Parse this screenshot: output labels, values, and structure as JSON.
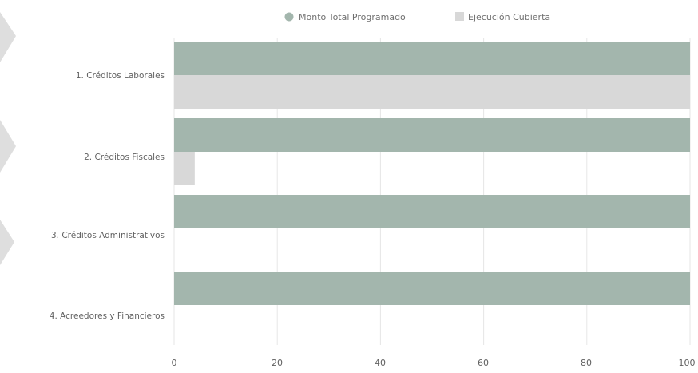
{
  "colors": {
    "series_1": "#a3b6ad",
    "series_2": "#d8d8d8",
    "gridline": "#e6e6e6",
    "chevron": "#dedede"
  },
  "chart_data": {
    "type": "bar",
    "orientation": "horizontal",
    "title": "",
    "xlabel": "",
    "ylabel": "",
    "categories": [
      "1. Créditos Laborales",
      "2. Créditos Fiscales",
      "3. Créditos Administrativos",
      "4. Acreedores y Financieros"
    ],
    "series": [
      {
        "name": "Monto Total Programado",
        "values": [
          100,
          100,
          100,
          100
        ]
      },
      {
        "name": "Ejecución Cubierta",
        "values": [
          100,
          4,
          0,
          0
        ]
      }
    ],
    "xlim": [
      0,
      100
    ],
    "xticks": [
      "0",
      "20",
      "40",
      "60",
      "80",
      "100"
    ],
    "grid": true,
    "legend_position": "top"
  }
}
